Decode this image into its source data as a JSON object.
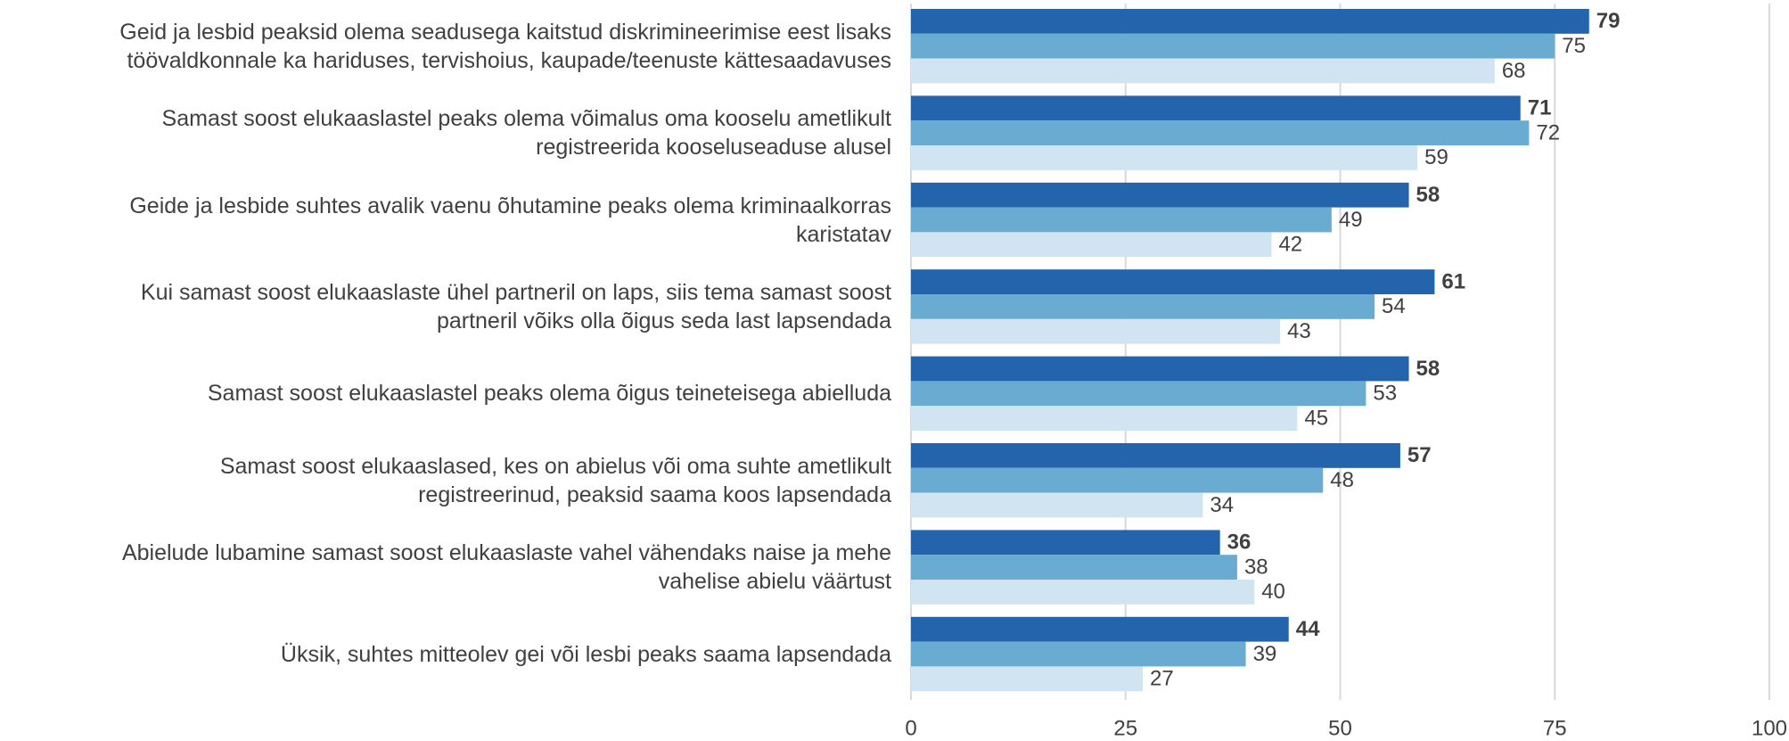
{
  "chart_data": {
    "type": "hbar",
    "categories": [
      "Geid ja lesbid peaksid olema seadusega kaitstud diskrimineerimise eest lisaks\ntöövaldkonnale ka hariduses, tervishoius, kaupade/teenuste kättesaadavuses",
      "Samast soost elukaaslastel peaks olema võimalus oma kooselu ametlikult\nregistreerida kooseluseaduse alusel",
      "Geide ja lesbide suhtes avalik vaenu õhutamine peaks olema kriminaalkorras\nkaristatav",
      "Kui samast soost elukaaslaste ühel partneril on laps, siis tema samast soost\npartneril võiks olla õigus seda last lapsendada",
      "Samast soost elukaaslastel peaks olema õigus teineteisega abielluda",
      "Samast soost elukaaslased, kes on abielus või oma suhte ametlikult\nregistreerinud, peaksid saama koos lapsendada",
      "Abielude lubamine samast soost elukaaslaste vahel vähendaks naise ja mehe\nvahelise abielu väärtust",
      "Üksik, suhtes mitteolev gei või lesbi peaks saama lapsendada"
    ],
    "series": [
      {
        "color": "#2364ad",
        "values": [
          79,
          71,
          58,
          61,
          58,
          57,
          36,
          44
        ]
      },
      {
        "color": "#6aabd2",
        "values": [
          75,
          72,
          49,
          54,
          53,
          48,
          38,
          39
        ]
      },
      {
        "color": "#d0e4f2",
        "values": [
          68,
          59,
          42,
          43,
          45,
          34,
          40,
          27
        ]
      }
    ],
    "xlim": [
      0,
      100
    ],
    "xticks": [
      0,
      25,
      50,
      75,
      100
    ],
    "grid": true
  }
}
